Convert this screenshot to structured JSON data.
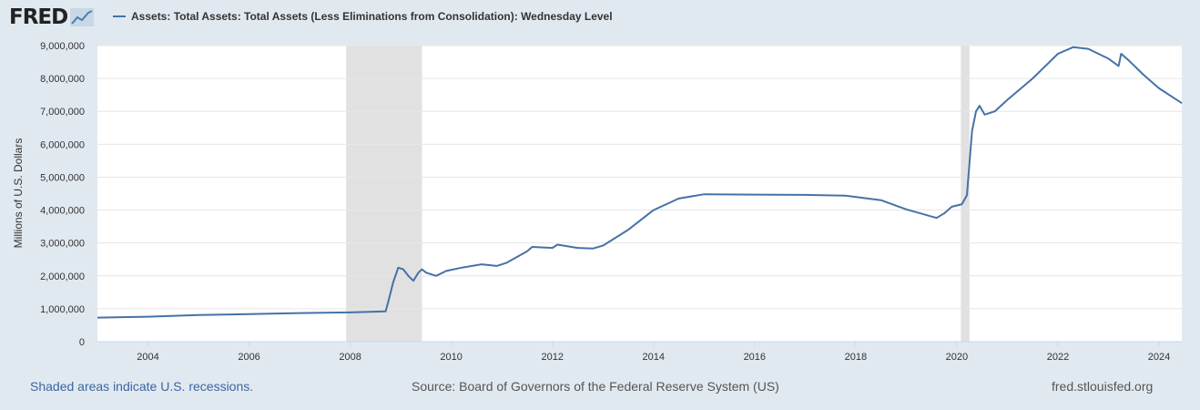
{
  "logo": {
    "text": "FRED"
  },
  "colors": {
    "series": "#4572a7",
    "recession": "#e1e1e1",
    "background": "#e1e9f0"
  },
  "footer": {
    "recession_note": "Shaded areas indicate U.S. recessions.",
    "source": "Source: Board of Governors of the Federal Reserve System (US)",
    "site": "fred.stlouisfed.org"
  },
  "chart_data": {
    "type": "line",
    "title": "Assets: Total Assets: Total Assets (Less Eliminations from Consolidation): Wednesday Level",
    "xlabel": "",
    "ylabel": "Millions of U.S. Dollars",
    "xlim": [
      2003.0,
      2024.45
    ],
    "ylim": [
      0,
      9000000
    ],
    "yticks": [
      {
        "value": 0,
        "label": "0"
      },
      {
        "value": 1000000,
        "label": "1,000,000"
      },
      {
        "value": 2000000,
        "label": "2,000,000"
      },
      {
        "value": 3000000,
        "label": "3,000,000"
      },
      {
        "value": 4000000,
        "label": "4,000,000"
      },
      {
        "value": 5000000,
        "label": "5,000,000"
      },
      {
        "value": 6000000,
        "label": "6,000,000"
      },
      {
        "value": 7000000,
        "label": "7,000,000"
      },
      {
        "value": 8000000,
        "label": "8,000,000"
      },
      {
        "value": 9000000,
        "label": "9,000,000"
      }
    ],
    "xticks": [
      {
        "value": 2004,
        "label": "2004"
      },
      {
        "value": 2006,
        "label": "2006"
      },
      {
        "value": 2008,
        "label": "2008"
      },
      {
        "value": 2010,
        "label": "2010"
      },
      {
        "value": 2012,
        "label": "2012"
      },
      {
        "value": 2014,
        "label": "2014"
      },
      {
        "value": 2016,
        "label": "2016"
      },
      {
        "value": 2018,
        "label": "2018"
      },
      {
        "value": 2020,
        "label": "2020"
      },
      {
        "value": 2022,
        "label": "2022"
      },
      {
        "value": 2024,
        "label": "2024"
      }
    ],
    "recessions": [
      {
        "start": 2007.92,
        "end": 2009.42
      },
      {
        "start": 2020.08,
        "end": 2020.25
      }
    ],
    "series": [
      {
        "name": "Assets: Total Assets: Total Assets (Less Eliminations from Consolidation): Wednesday Level",
        "points": [
          [
            2003.0,
            730000
          ],
          [
            2004.0,
            760000
          ],
          [
            2005.0,
            810000
          ],
          [
            2006.0,
            840000
          ],
          [
            2007.0,
            870000
          ],
          [
            2008.0,
            890000
          ],
          [
            2008.7,
            920000
          ],
          [
            2008.75,
            1200000
          ],
          [
            2008.85,
            1800000
          ],
          [
            2008.95,
            2250000
          ],
          [
            2009.05,
            2200000
          ],
          [
            2009.15,
            2000000
          ],
          [
            2009.25,
            1850000
          ],
          [
            2009.35,
            2100000
          ],
          [
            2009.42,
            2200000
          ],
          [
            2009.5,
            2100000
          ],
          [
            2009.7,
            2000000
          ],
          [
            2009.9,
            2150000
          ],
          [
            2010.2,
            2250000
          ],
          [
            2010.6,
            2350000
          ],
          [
            2010.9,
            2300000
          ],
          [
            2011.1,
            2400000
          ],
          [
            2011.5,
            2750000
          ],
          [
            2011.6,
            2880000
          ],
          [
            2012.0,
            2850000
          ],
          [
            2012.1,
            2950000
          ],
          [
            2012.5,
            2850000
          ],
          [
            2012.8,
            2830000
          ],
          [
            2013.0,
            2920000
          ],
          [
            2013.5,
            3400000
          ],
          [
            2014.0,
            4000000
          ],
          [
            2014.5,
            4350000
          ],
          [
            2015.0,
            4480000
          ],
          [
            2016.0,
            4470000
          ],
          [
            2017.0,
            4460000
          ],
          [
            2017.8,
            4440000
          ],
          [
            2018.5,
            4300000
          ],
          [
            2019.0,
            4020000
          ],
          [
            2019.6,
            3760000
          ],
          [
            2019.75,
            3900000
          ],
          [
            2019.9,
            4100000
          ],
          [
            2020.1,
            4180000
          ],
          [
            2020.2,
            4450000
          ],
          [
            2020.3,
            6400000
          ],
          [
            2020.38,
            7000000
          ],
          [
            2020.45,
            7170000
          ],
          [
            2020.55,
            6900000
          ],
          [
            2020.75,
            7000000
          ],
          [
            2021.0,
            7350000
          ],
          [
            2021.5,
            8000000
          ],
          [
            2022.0,
            8750000
          ],
          [
            2022.3,
            8950000
          ],
          [
            2022.6,
            8900000
          ],
          [
            2023.0,
            8600000
          ],
          [
            2023.2,
            8380000
          ],
          [
            2023.25,
            8750000
          ],
          [
            2023.4,
            8550000
          ],
          [
            2023.7,
            8100000
          ],
          [
            2024.0,
            7700000
          ],
          [
            2024.45,
            7250000
          ]
        ]
      }
    ]
  }
}
